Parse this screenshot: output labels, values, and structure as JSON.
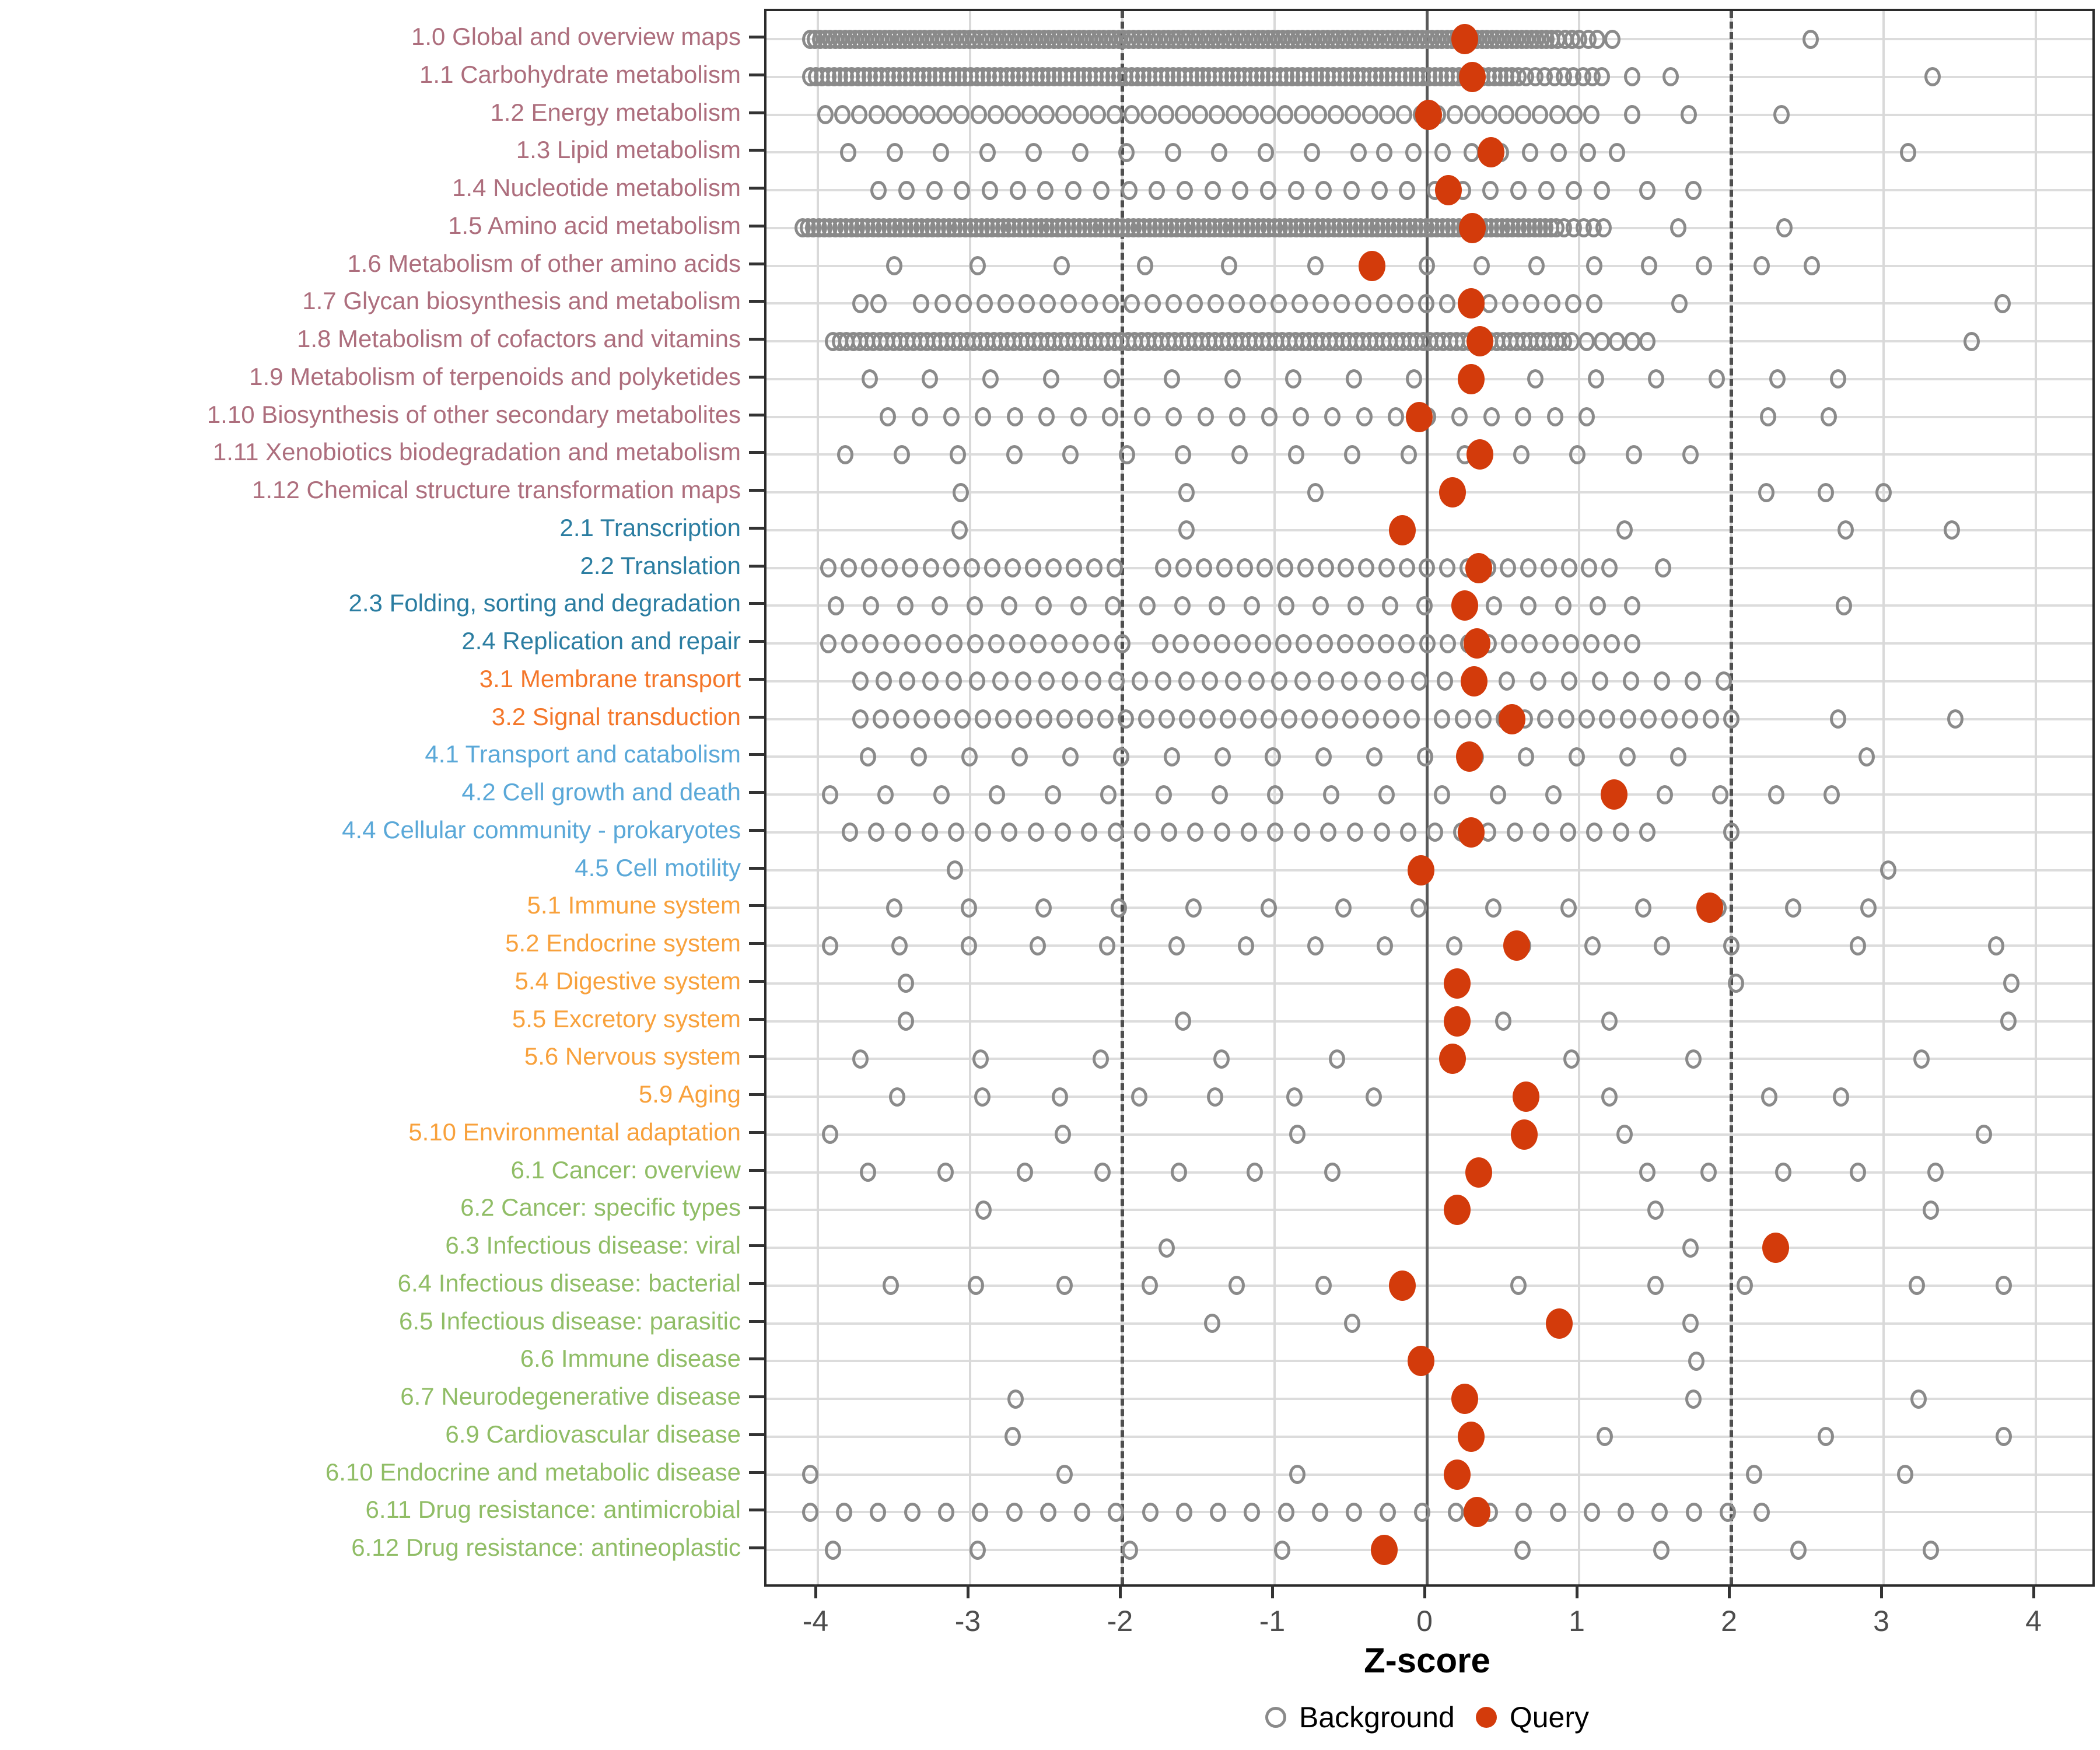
{
  "chart_data": {
    "type": "scatter",
    "title": "",
    "xlabel": "Z-score",
    "ylabel": "",
    "x_ticks": [
      -4,
      -3,
      -2,
      -1,
      0,
      1,
      2,
      3,
      4
    ],
    "xlim": [
      -4.33,
      4.35
    ],
    "grid": "on",
    "reference_lines": {
      "solid_at": 0,
      "dashed_at": [
        -2,
        2
      ]
    },
    "legend": {
      "position": "bottom",
      "background_label": "Background",
      "query_label": "Query"
    },
    "colors": {
      "query": "#d33b0b",
      "background_stroke": "#8a8a8a",
      "grid": "#d9d9d9",
      "reference": "#4f4f4f",
      "axis_text": "#4d4d4d",
      "groups": {
        "metabolism": "#ad6e7d",
        "genetic_information_processing": "#2b7da1",
        "environmental_information_processing": "#f4772a",
        "cellular_processes": "#5aa8d8",
        "organismal_systems": "#f8a13c",
        "human_diseases": "#90bd66"
      }
    },
    "rows": [
      {
        "label": "1.0 Global and overview maps",
        "group": "metabolism",
        "query": 0.25,
        "background_segments": [
          [
            -4.05,
            0.82,
            150
          ],
          [
            0.86,
            1.0,
            4
          ]
        ],
        "background_points": [
          1.06,
          1.12,
          1.22,
          2.52
        ]
      },
      {
        "label": "1.1 Carbohydrate metabolism",
        "group": "metabolism",
        "query": 0.3,
        "background_segments": [
          [
            -4.05,
            0.6,
            120
          ],
          [
            0.65,
            1.15,
            9
          ]
        ],
        "background_points": [
          1.35,
          1.6,
          3.32
        ]
      },
      {
        "label": "1.2 Energy metabolism",
        "group": "metabolism",
        "query": 0.01,
        "background_segments": [
          [
            -3.95,
            1.08,
            46
          ]
        ],
        "background_points": [
          1.35,
          1.72,
          2.33
        ]
      },
      {
        "label": "1.3 Lipid metabolism",
        "group": "metabolism",
        "query": 0.42,
        "background_segments": [
          [
            -3.8,
            -0.45,
            12
          ],
          [
            -0.28,
            1.25,
            9
          ]
        ],
        "background_points": [
          3.16
        ]
      },
      {
        "label": "1.4 Nucleotide metabolism",
        "group": "metabolism",
        "query": 0.14,
        "background_segments": [
          [
            -3.6,
            1.15,
            27
          ]
        ],
        "background_points": [
          1.45,
          1.75
        ]
      },
      {
        "label": "1.5 Amino acid metabolism",
        "group": "metabolism",
        "query": 0.3,
        "background_segments": [
          [
            -4.1,
            0.85,
            140
          ],
          [
            0.9,
            1.16,
            5
          ]
        ],
        "background_points": [
          1.65,
          2.35
        ]
      },
      {
        "label": "1.6 Metabolism of other amino acids",
        "group": "metabolism",
        "query": -0.36,
        "background_segments": [],
        "background_points": [
          -3.5,
          -2.95,
          -2.4,
          -1.85,
          -1.3,
          -0.73,
          0.0,
          0.36,
          0.72,
          1.1,
          1.46,
          1.82,
          2.2,
          2.53
        ]
      },
      {
        "label": "1.7 Glycan biosynthesis and metabolism",
        "group": "metabolism",
        "query": 0.29,
        "background_segments": [
          [
            -3.72,
            -3.6,
            2
          ],
          [
            -3.32,
            1.1,
            33
          ]
        ],
        "background_points": [
          1.66,
          3.78
        ]
      },
      {
        "label": "1.8 Metabolism of cofactors and vitamins",
        "group": "metabolism",
        "query": 0.35,
        "background_segments": [
          [
            -3.9,
            0.9,
            110
          ],
          [
            0.95,
            1.45,
            6
          ]
        ],
        "background_points": [
          3.58
        ]
      },
      {
        "label": "1.9 Metabolism of terpenoids and polyketides",
        "group": "metabolism",
        "query": 0.29,
        "background_segments": [
          [
            -3.66,
            2.7,
            17
          ]
        ],
        "background_points": []
      },
      {
        "label": "1.10 Biosynthesis of other secondary metabolites",
        "group": "metabolism",
        "query": -0.05,
        "background_segments": [
          [
            -3.54,
            1.05,
            23
          ]
        ],
        "background_points": [
          2.24,
          2.64
        ]
      },
      {
        "label": "1.11 Xenobiotics biodegradation and metabolism",
        "group": "metabolism",
        "query": 0.35,
        "background_segments": [
          [
            -3.82,
            1.73,
            16
          ]
        ],
        "background_points": []
      },
      {
        "label": "1.12 Chemical structure transformation maps",
        "group": "metabolism",
        "query": 0.17,
        "background_segments": [],
        "background_points": [
          -3.06,
          -1.58,
          -0.73,
          2.23,
          2.62,
          3.0
        ]
      },
      {
        "label": "2.1 Transcription",
        "group": "genetic_information_processing",
        "query": -0.16,
        "background_segments": [],
        "background_points": [
          -3.07,
          -1.58,
          1.3,
          2.75,
          3.45
        ]
      },
      {
        "label": "2.2 Translation",
        "group": "genetic_information_processing",
        "query": 0.34,
        "background_segments": [
          [
            -3.93,
            -2.05,
            15
          ],
          [
            -1.73,
            1.2,
            23
          ]
        ],
        "background_points": [
          1.55
        ]
      },
      {
        "label": "2.3 Folding, sorting and degradation",
        "group": "genetic_information_processing",
        "query": 0.25,
        "background_segments": [
          [
            -3.88,
            1.35,
            24
          ]
        ],
        "background_points": [
          2.74
        ]
      },
      {
        "label": "2.4 Replication and repair",
        "group": "genetic_information_processing",
        "query": 0.33,
        "background_segments": [
          [
            -3.93,
            -2.0,
            15
          ],
          [
            -1.75,
            1.35,
            24
          ]
        ],
        "background_points": []
      },
      {
        "label": "3.1 Membrane transport",
        "group": "environmental_information_processing",
        "query": 0.31,
        "background_segments": [
          [
            -3.72,
            -0.05,
            25
          ],
          [
            0.12,
            1.95,
            10
          ]
        ],
        "background_points": []
      },
      {
        "label": "3.2 Signal transduction",
        "group": "environmental_information_processing",
        "query": 0.56,
        "background_segments": [
          [
            -3.72,
            -0.1,
            28
          ],
          [
            0.1,
            2.0,
            15
          ]
        ],
        "background_points": [
          2.7,
          3.47
        ]
      },
      {
        "label": "4.1 Transport and catabolism",
        "group": "cellular_processes",
        "query": 0.28,
        "background_segments": [
          [
            -3.67,
            1.65,
            17
          ]
        ],
        "background_points": [
          2.89
        ]
      },
      {
        "label": "4.2 Cell growth and death",
        "group": "cellular_processes",
        "query": 1.23,
        "background_segments": [
          [
            -3.92,
            2.66,
            19
          ]
        ],
        "background_points": []
      },
      {
        "label": "4.4 Cellular community - prokaryotes",
        "group": "cellular_processes",
        "query": 0.29,
        "background_segments": [
          [
            -3.79,
            1.45,
            31
          ]
        ],
        "background_points": [
          2.0
        ]
      },
      {
        "label": "4.5 Cell motility",
        "group": "cellular_processes",
        "query": -0.04,
        "background_segments": [],
        "background_points": [
          -3.1,
          3.03
        ]
      },
      {
        "label": "5.1 Immune system",
        "group": "organismal_systems",
        "query": 1.86,
        "background_segments": [
          [
            -3.5,
            2.9,
            14
          ]
        ],
        "background_points": []
      },
      {
        "label": "5.2 Endocrine system",
        "group": "organismal_systems",
        "query": 0.59,
        "background_segments": [
          [
            -3.92,
            2.0,
            14
          ]
        ],
        "background_points": [
          2.83,
          3.74
        ]
      },
      {
        "label": "5.4 Digestive system",
        "group": "organismal_systems",
        "query": 0.2,
        "background_segments": [],
        "background_points": [
          -3.42,
          2.03,
          3.84
        ]
      },
      {
        "label": "5.5 Excretory system",
        "group": "organismal_systems",
        "query": 0.2,
        "background_segments": [],
        "background_points": [
          -3.42,
          -1.6,
          0.5,
          1.2,
          3.82
        ]
      },
      {
        "label": "5.6 Nervous system",
        "group": "organismal_systems",
        "query": 0.17,
        "background_segments": [],
        "background_points": [
          -3.72,
          -2.93,
          -2.14,
          -1.35,
          -0.59,
          0.95,
          1.75,
          3.25
        ]
      },
      {
        "label": "5.9 Aging",
        "group": "organismal_systems",
        "query": 0.65,
        "background_segments": [],
        "background_points": [
          -3.48,
          -2.92,
          -2.41,
          -1.89,
          -1.39,
          -0.87,
          -0.35,
          1.2,
          2.25,
          2.72
        ]
      },
      {
        "label": "5.10 Environmental adaptation",
        "group": "organismal_systems",
        "query": 0.64,
        "background_segments": [],
        "background_points": [
          -3.92,
          -2.39,
          -0.85,
          1.3,
          3.66
        ]
      },
      {
        "label": "6.1 Cancer: overview",
        "group": "human_diseases",
        "query": 0.34,
        "background_segments": [],
        "background_points": [
          -3.67,
          -3.16,
          -2.64,
          -2.13,
          -1.63,
          -1.13,
          -0.62,
          1.45,
          1.85,
          2.34,
          2.83,
          3.34
        ]
      },
      {
        "label": "6.2 Cancer: specific types",
        "group": "human_diseases",
        "query": 0.2,
        "background_segments": [],
        "background_points": [
          -2.91,
          1.5,
          3.31
        ]
      },
      {
        "label": "6.3 Infectious disease: viral",
        "group": "human_diseases",
        "query": 2.29,
        "background_segments": [],
        "background_points": [
          -1.71,
          1.73
        ]
      },
      {
        "label": "6.4 Infectious disease: bacterial",
        "group": "human_diseases",
        "query": -0.16,
        "background_segments": [],
        "background_points": [
          -3.52,
          -2.96,
          -2.38,
          -1.82,
          -1.25,
          -0.68,
          0.6,
          1.5,
          2.09,
          3.22,
          3.79
        ]
      },
      {
        "label": "6.5 Infectious disease: parasitic",
        "group": "human_diseases",
        "query": 0.87,
        "background_segments": [],
        "background_points": [
          -1.41,
          -0.49,
          1.73
        ]
      },
      {
        "label": "6.6 Immune disease",
        "group": "human_diseases",
        "query": -0.04,
        "background_segments": [],
        "background_points": [
          1.77
        ]
      },
      {
        "label": "6.7 Neurodegenerative disease",
        "group": "human_diseases",
        "query": 0.25,
        "background_segments": [],
        "background_points": [
          -2.7,
          1.75,
          3.23
        ]
      },
      {
        "label": "6.9 Cardiovascular disease",
        "group": "human_diseases",
        "query": 0.29,
        "background_segments": [],
        "background_points": [
          -2.72,
          1.17,
          2.62,
          3.79
        ]
      },
      {
        "label": "6.10 Endocrine and metabolic disease",
        "group": "human_diseases",
        "query": 0.2,
        "background_segments": [],
        "background_points": [
          -4.05,
          -2.38,
          -0.85,
          2.15,
          3.14
        ]
      },
      {
        "label": "6.11 Drug resistance: antimicrobial",
        "group": "human_diseases",
        "query": 0.33,
        "background_segments": [
          [
            -4.05,
            2.2,
            29
          ]
        ],
        "background_points": []
      },
      {
        "label": "6.12 Drug resistance: antineoplastic",
        "group": "human_diseases",
        "query": -0.28,
        "background_segments": [],
        "background_points": [
          -3.9,
          -2.95,
          -1.95,
          -0.95,
          0.63,
          1.54,
          2.44,
          3.31
        ]
      }
    ]
  }
}
